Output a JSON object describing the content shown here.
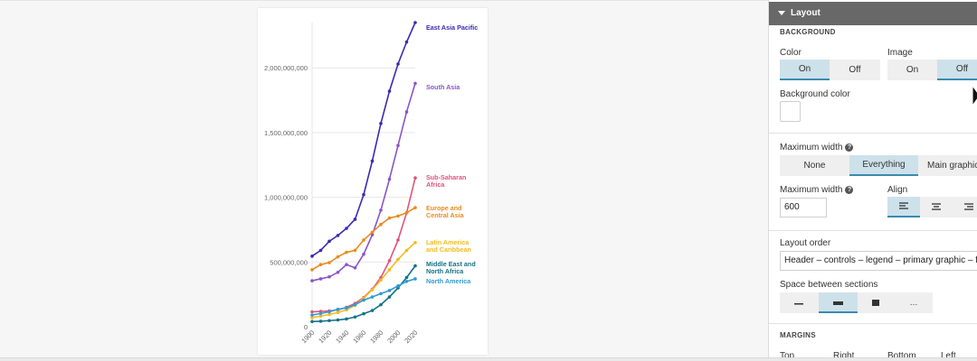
{
  "panel": {
    "section_title": "Layout",
    "background": {
      "heading": "BACKGROUND",
      "color_label": "Color",
      "color_options": [
        "On",
        "Off"
      ],
      "color_selected": "On",
      "image_label": "Image",
      "image_options": [
        "On",
        "Off"
      ],
      "image_selected": "Off",
      "bg_color_label": "Background color",
      "bg_color_value": "#ffffff"
    },
    "max_width": {
      "label": "Maximum width",
      "options": [
        "None",
        "Everything",
        "Main graphic"
      ],
      "selected": "Everything",
      "value_label": "Maximum width",
      "value": "600",
      "align_label": "Align",
      "align_icons": [
        "align-left-icon",
        "align-center-icon",
        "align-right-icon"
      ],
      "align_selected": "left"
    },
    "layout_order": {
      "label": "Layout order",
      "value": "Header – controls – legend – primary graphic – footer"
    },
    "space_between": {
      "label": "Space between sections",
      "options": [
        "small",
        "medium",
        "large",
        "..."
      ],
      "selected": "medium",
      "more_label": "…"
    },
    "margins": {
      "heading": "MARGINS",
      "labels": [
        "Top",
        "Right",
        "Bottom",
        "Left"
      ]
    },
    "help_glyph": "?"
  },
  "colors": {
    "accent": "#3c8aaf",
    "selected_bg": "#cde1ea",
    "header_bg": "#686868"
  },
  "chart_data": {
    "type": "line",
    "title": "",
    "xlabel": "",
    "ylabel": "",
    "x": [
      1900,
      1910,
      1920,
      1930,
      1940,
      1950,
      1960,
      1970,
      1980,
      1990,
      2000,
      2010,
      2020
    ],
    "x_ticks": [
      1900,
      1920,
      1940,
      1960,
      1980,
      2000,
      2020
    ],
    "y_ticks": [
      0,
      500000000,
      1000000000,
      1500000000,
      2000000000
    ],
    "y_tick_labels": [
      "0",
      "500,000,000",
      "1,000,000,000",
      "1,500,000,000",
      "2,000,000,000"
    ],
    "ylim": [
      0,
      2350000000
    ],
    "xlim": [
      1900,
      2020
    ],
    "grid": "horizontal",
    "series": [
      {
        "name": "East Asia Pacific",
        "label_lines": [
          "East Asia Pacific"
        ],
        "color": "#3b2bb0",
        "values": [
          545000000,
          590000000,
          660000000,
          705000000,
          760000000,
          830000000,
          1020000000,
          1280000000,
          1570000000,
          1820000000,
          2030000000,
          2200000000,
          2350000000
        ]
      },
      {
        "name": "South Asia",
        "label_lines": [
          "South Asia"
        ],
        "color": "#8a55c8",
        "values": [
          355000000,
          370000000,
          385000000,
          420000000,
          480000000,
          455000000,
          560000000,
          710000000,
          900000000,
          1140000000,
          1400000000,
          1660000000,
          1880000000
        ]
      },
      {
        "name": "Sub-Saharan Africa",
        "label_lines": [
          "Sub-Saharan",
          "Africa"
        ],
        "color": "#e0547a",
        "values": [
          115000000,
          118000000,
          122000000,
          130000000,
          150000000,
          180000000,
          225000000,
          290000000,
          380000000,
          510000000,
          670000000,
          880000000,
          1150000000
        ]
      },
      {
        "name": "Europe and Central Asia",
        "label_lines": [
          "Europe and",
          "Central Asia"
        ],
        "color": "#ea8a1e",
        "values": [
          440000000,
          480000000,
          495000000,
          540000000,
          575000000,
          590000000,
          670000000,
          730000000,
          790000000,
          840000000,
          855000000,
          880000000,
          920000000
        ]
      },
      {
        "name": "Latin America and Caribbean",
        "label_lines": [
          "Latin America",
          "and Caribbean"
        ],
        "color": "#f2bb22",
        "values": [
          70000000,
          82000000,
          95000000,
          110000000,
          130000000,
          165000000,
          220000000,
          285000000,
          360000000,
          440000000,
          520000000,
          590000000,
          650000000
        ]
      },
      {
        "name": "Middle East and North Africa",
        "label_lines": [
          "Middle East and",
          "North Africa"
        ],
        "color": "#157285",
        "values": [
          40000000,
          42000000,
          47000000,
          52000000,
          60000000,
          75000000,
          100000000,
          125000000,
          170000000,
          230000000,
          300000000,
          380000000,
          470000000
        ]
      },
      {
        "name": "North America",
        "label_lines": [
          "North America"
        ],
        "color": "#2f9bd6",
        "values": [
          90000000,
          102000000,
          115000000,
          135000000,
          145000000,
          170000000,
          205000000,
          230000000,
          255000000,
          280000000,
          315000000,
          350000000,
          370000000
        ]
      }
    ]
  }
}
